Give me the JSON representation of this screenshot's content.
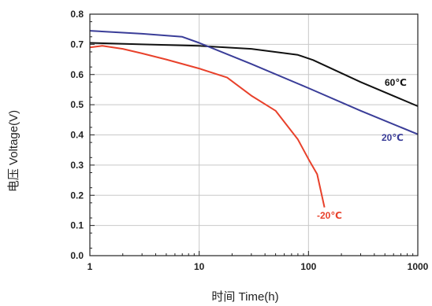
{
  "chart_data": {
    "type": "line",
    "xlabel": "时间 Time(h)",
    "ylabel": "电压 Voltage(V)",
    "xscale": "log",
    "xlim": [
      1,
      1000
    ],
    "ylim": [
      0.0,
      0.8
    ],
    "grid": true,
    "x_ticks": [
      1,
      10,
      100,
      1000
    ],
    "x_tick_labels": [
      "1",
      "10",
      "100",
      "1000"
    ],
    "y_ticks": [
      0.0,
      0.1,
      0.2,
      0.3,
      0.4,
      0.5,
      0.6,
      0.7,
      0.8
    ],
    "y_tick_labels": [
      "0.0",
      "0.1",
      "0.2",
      "0.3",
      "0.4",
      "0.5",
      "0.6",
      "0.7",
      "0.8"
    ],
    "series": [
      {
        "name": "60℃",
        "color": "#111111",
        "x": [
          1,
          3,
          10,
          30,
          80,
          110,
          300,
          1000
        ],
        "y": [
          0.705,
          0.7,
          0.695,
          0.685,
          0.665,
          0.648,
          0.575,
          0.495
        ]
      },
      {
        "name": "20℃",
        "color": "#3a3d98",
        "x": [
          1,
          3,
          7,
          10,
          30,
          100,
          300,
          1000
        ],
        "y": [
          0.745,
          0.735,
          0.725,
          0.705,
          0.635,
          0.555,
          0.48,
          0.402
        ]
      },
      {
        "name": "-20℃",
        "color": "#e8412b",
        "x": [
          1,
          1.3,
          2,
          3,
          5,
          10,
          18,
          30,
          50,
          80,
          100,
          120,
          140
        ],
        "y": [
          0.69,
          0.695,
          0.685,
          0.67,
          0.65,
          0.62,
          0.59,
          0.53,
          0.48,
          0.385,
          0.32,
          0.27,
          0.16
        ]
      }
    ]
  }
}
